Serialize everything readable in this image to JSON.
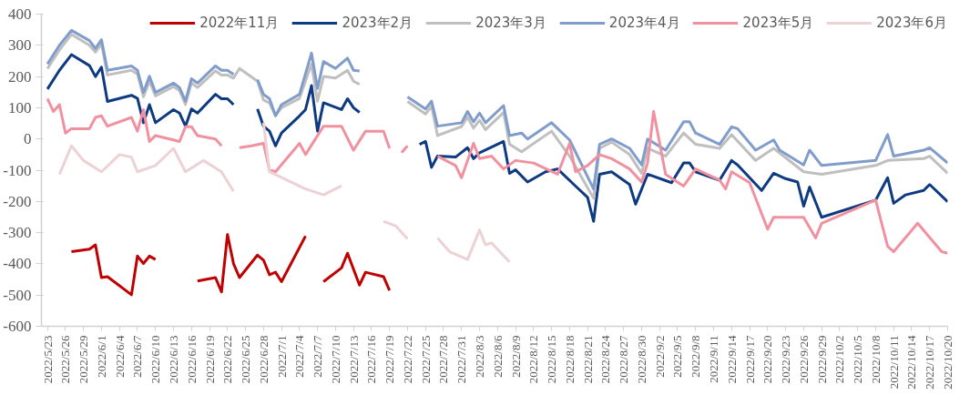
{
  "chart_data": {
    "type": "line",
    "legend": "top",
    "grid": false,
    "xlim": [
      "2022-05-22",
      "2022-10-20"
    ],
    "ylim": [
      -600,
      400
    ],
    "yticks": [
      -600,
      -500,
      -400,
      -300,
      -200,
      -100,
      0,
      100,
      200,
      300,
      400
    ],
    "xticks": [
      {
        "value": "2022-05-23",
        "label": "2022/5/23"
      },
      {
        "value": "2022-05-26",
        "label": "2022/5/26"
      },
      {
        "value": "2022-05-29",
        "label": "2022/5/29"
      },
      {
        "value": "2022-06-01",
        "label": "2022/6/1"
      },
      {
        "value": "2022-06-04",
        "label": "2022/6/4"
      },
      {
        "value": "2022-06-07",
        "label": "2022/6/7"
      },
      {
        "value": "2022-06-10",
        "label": "2022/6/10"
      },
      {
        "value": "2022-06-13",
        "label": "2022/6/13"
      },
      {
        "value": "2022-06-16",
        "label": "2022/6/16"
      },
      {
        "value": "2022-06-19",
        "label": "2022/6/19"
      },
      {
        "value": "2022-06-22",
        "label": "2022/6/22"
      },
      {
        "value": "2022-06-25",
        "label": "2022/6/25"
      },
      {
        "value": "2022-06-28",
        "label": "2022/6/28"
      },
      {
        "value": "2022-07-01",
        "label": "2022/7/1"
      },
      {
        "value": "2022-07-04",
        "label": "2022/7/4"
      },
      {
        "value": "2022-07-07",
        "label": "2022/7/7"
      },
      {
        "value": "2022-07-10",
        "label": "2022/7/10"
      },
      {
        "value": "2022-07-13",
        "label": "2022/7/13"
      },
      {
        "value": "2022-07-16",
        "label": "2022/7/16"
      },
      {
        "value": "2022-07-19",
        "label": "2022/7/19"
      },
      {
        "value": "2022-07-22",
        "label": "2022/7/22"
      },
      {
        "value": "2022-07-25",
        "label": "2022/7/25"
      },
      {
        "value": "2022-07-28",
        "label": "2022/7/28"
      },
      {
        "value": "2022-07-31",
        "label": "2022/7/31"
      },
      {
        "value": "2022-08-03",
        "label": "2022/8/3"
      },
      {
        "value": "2022-08-06",
        "label": "2022/8/6"
      },
      {
        "value": "2022-08-09",
        "label": "2022/8/9"
      },
      {
        "value": "2022-08-12",
        "label": "2022/8/12"
      },
      {
        "value": "2022-08-15",
        "label": "2022/8/15"
      },
      {
        "value": "2022-08-18",
        "label": "2022/8/18"
      },
      {
        "value": "2022-08-21",
        "label": "2022/8/21"
      },
      {
        "value": "2022-08-24",
        "label": "2022/8/24"
      },
      {
        "value": "2022-08-27",
        "label": "2022/8/27"
      },
      {
        "value": "2022-08-30",
        "label": "2022/8/30"
      },
      {
        "value": "2022-09-02",
        "label": "2022/9/2"
      },
      {
        "value": "2022-09-05",
        "label": "2022/9/5"
      },
      {
        "value": "2022-09-08",
        "label": "2022/9/8"
      },
      {
        "value": "2022-09-11",
        "label": "2022/9/11"
      },
      {
        "value": "2022-09-14",
        "label": "2022/9/14"
      },
      {
        "value": "2022-09-17",
        "label": "2022/9/17"
      },
      {
        "value": "2022-09-20",
        "label": "2022/9/20"
      },
      {
        "value": "2022-09-23",
        "label": "2022/9/23"
      },
      {
        "value": "2022-09-26",
        "label": "2022/9/26"
      },
      {
        "value": "2022-09-29",
        "label": "2022/9/29"
      },
      {
        "value": "2022-10-02",
        "label": "2022/10/2"
      },
      {
        "value": "2022-10-05",
        "label": "2022/10/5"
      },
      {
        "value": "2022-10-08",
        "label": "2022/10/8"
      },
      {
        "value": "2022-10-11",
        "label": "2022/10/11"
      },
      {
        "value": "2022-10-14",
        "label": "2022/10/14"
      },
      {
        "value": "2022-10-17",
        "label": "2022/10/17"
      },
      {
        "value": "2022-10-20",
        "label": "2022/10/20"
      }
    ],
    "series": [
      {
        "name": "2022年11月",
        "color": "#c00000",
        "x": [
          "2022-05-27",
          "2022-05-30",
          "2022-05-31",
          "2022-06-01",
          "2022-06-02",
          "2022-06-06",
          "2022-06-07",
          "2022-06-08",
          "2022-06-09",
          "2022-06-10",
          "2022-06-13",
          "2022-06-17",
          "2022-06-20",
          "2022-06-21",
          "2022-06-22",
          "2022-06-23",
          "2022-06-24",
          "2022-06-27",
          "2022-06-28",
          "2022-06-29",
          "2022-06-30",
          "2022-07-01",
          "2022-07-05",
          "2022-07-06",
          "2022-07-08",
          "2022-07-11",
          "2022-07-12",
          "2022-07-14",
          "2022-07-15",
          "2022-07-18",
          "2022-07-19"
        ],
        "values": [
          -361,
          -353,
          -339,
          -444,
          -441,
          -499,
          -375,
          -399,
          -375,
          -386,
          null,
          -455,
          -444,
          -490,
          -306,
          -399,
          -444,
          -372,
          -388,
          -435,
          -427,
          -457,
          -311,
          null,
          -457,
          -413,
          -366,
          -468,
          -427,
          -441,
          -485
        ]
      },
      {
        "name": "2023年2月",
        "color": "#0e3a82",
        "x": [
          "2022-05-23",
          "2022-05-25",
          "2022-05-27",
          "2022-05-30",
          "2022-05-31",
          "2022-06-01",
          "2022-06-02",
          "2022-06-06",
          "2022-06-07",
          "2022-06-08",
          "2022-06-09",
          "2022-06-10",
          "2022-06-13",
          "2022-06-14",
          "2022-06-15",
          "2022-06-16",
          "2022-06-17",
          "2022-06-20",
          "2022-06-21",
          "2022-06-22",
          "2022-06-23",
          "2022-06-25",
          "2022-06-27",
          "2022-06-28",
          "2022-06-29",
          "2022-06-30",
          "2022-07-01",
          "2022-07-04",
          "2022-07-05",
          "2022-07-06",
          "2022-07-07",
          "2022-07-08",
          "2022-07-11",
          "2022-07-12",
          "2022-07-13",
          "2022-07-14",
          "2022-07-18",
          "2022-07-24",
          "2022-07-25",
          "2022-07-26",
          "2022-07-27",
          "2022-07-30",
          "2022-08-01",
          "2022-08-02",
          "2022-08-03",
          "2022-08-07",
          "2022-08-08",
          "2022-08-09",
          "2022-08-11",
          "2022-08-14",
          "2022-08-16",
          "2022-08-19",
          "2022-08-21",
          "2022-08-22",
          "2022-08-23",
          "2022-08-25",
          "2022-08-28",
          "2022-08-29",
          "2022-08-31",
          "2022-09-04",
          "2022-09-06",
          "2022-09-07",
          "2022-09-08",
          "2022-09-12",
          "2022-09-14",
          "2022-09-15",
          "2022-09-19",
          "2022-09-21",
          "2022-09-23",
          "2022-09-25",
          "2022-09-26",
          "2022-09-27",
          "2022-09-29",
          "2022-10-08",
          "2022-10-10",
          "2022-10-11",
          "2022-10-13",
          "2022-10-16",
          "2022-10-17",
          "2022-10-20"
        ],
        "values": [
          160,
          220,
          270,
          235,
          200,
          230,
          120,
          140,
          130,
          52,
          110,
          52,
          94,
          83,
          41,
          96,
          83,
          143,
          129,
          129,
          110,
          null,
          96,
          41,
          25,
          -22,
          19,
          74,
          94,
          171,
          25,
          116,
          94,
          129,
          100,
          85,
          null,
          -17,
          -8,
          -91,
          -55,
          -58,
          -28,
          -63,
          -44,
          -8,
          -110,
          -99,
          -138,
          -105,
          -96,
          -151,
          -187,
          -264,
          -113,
          -105,
          -146,
          -209,
          -113,
          -140,
          -77,
          -77,
          -105,
          -132,
          -69,
          -83,
          -165,
          -110,
          -127,
          -138,
          -215,
          -154,
          -251,
          -196,
          -124,
          -206,
          -179,
          -165,
          -146,
          -201
        ]
      },
      {
        "name": "2023年3月",
        "color": "#bfbfbf",
        "x": [
          "2022-05-23",
          "2022-05-25",
          "2022-05-27",
          "2022-05-30",
          "2022-05-31",
          "2022-06-01",
          "2022-06-02",
          "2022-06-06",
          "2022-06-07",
          "2022-06-08",
          "2022-06-09",
          "2022-06-10",
          "2022-06-13",
          "2022-06-14",
          "2022-06-15",
          "2022-06-16",
          "2022-06-17",
          "2022-06-20",
          "2022-06-21",
          "2022-06-22",
          "2022-06-23",
          "2022-06-24",
          "2022-06-27",
          "2022-06-28",
          "2022-06-29",
          "2022-06-30",
          "2022-07-01",
          "2022-07-04",
          "2022-07-06",
          "2022-07-07",
          "2022-07-08",
          "2022-07-10",
          "2022-07-12",
          "2022-07-13",
          "2022-07-14",
          "2022-07-18",
          "2022-07-22",
          "2022-07-25",
          "2022-07-26",
          "2022-07-27",
          "2022-07-31",
          "2022-08-01",
          "2022-08-02",
          "2022-08-03",
          "2022-08-04",
          "2022-08-07",
          "2022-08-08",
          "2022-08-10",
          "2022-08-15",
          "2022-08-18",
          "2022-08-22",
          "2022-08-23",
          "2022-08-25",
          "2022-08-28",
          "2022-08-30",
          "2022-08-31",
          "2022-09-03",
          "2022-09-06",
          "2022-09-08",
          "2022-09-12",
          "2022-09-14",
          "2022-09-18",
          "2022-09-21",
          "2022-09-26",
          "2022-09-29",
          "2022-10-08",
          "2022-10-10",
          "2022-10-16",
          "2022-10-17",
          "2022-10-20"
        ],
        "values": [
          225,
          285,
          335,
          300,
          278,
          305,
          205,
          220,
          208,
          135,
          185,
          138,
          168,
          155,
          110,
          180,
          165,
          218,
          205,
          205,
          195,
          226,
          185,
          125,
          115,
          75,
          100,
          130,
          240,
          121,
          200,
          195,
          220,
          185,
          175,
          null,
          120,
          80,
          105,
          11,
          40,
          70,
          35,
          60,
          30,
          85,
          -17,
          -41,
          25,
          -55,
          -190,
          -30,
          -10,
          -50,
          -110,
          -30,
          -55,
          19,
          -17,
          -30,
          14,
          -69,
          -30,
          -105,
          -113,
          -85,
          -69,
          -63,
          -55,
          -110
        ]
      },
      {
        "name": "2023年4月",
        "color": "#7f9ccb",
        "x": [
          "2022-05-23",
          "2022-05-25",
          "2022-05-27",
          "2022-05-30",
          "2022-05-31",
          "2022-06-01",
          "2022-06-02",
          "2022-06-06",
          "2022-06-07",
          "2022-06-08",
          "2022-06-09",
          "2022-06-10",
          "2022-06-13",
          "2022-06-14",
          "2022-06-15",
          "2022-06-16",
          "2022-06-17",
          "2022-06-20",
          "2022-06-21",
          "2022-06-22",
          "2022-06-23",
          "2022-06-25",
          "2022-06-27",
          "2022-06-28",
          "2022-06-29",
          "2022-06-30",
          "2022-07-01",
          "2022-07-04",
          "2022-07-06",
          "2022-07-07",
          "2022-07-08",
          "2022-07-10",
          "2022-07-12",
          "2022-07-13",
          "2022-07-14",
          "2022-07-18",
          "2022-07-22",
          "2022-07-25",
          "2022-07-26",
          "2022-07-27",
          "2022-07-31",
          "2022-08-01",
          "2022-08-02",
          "2022-08-03",
          "2022-08-04",
          "2022-08-07",
          "2022-08-08",
          "2022-08-10",
          "2022-08-11",
          "2022-08-15",
          "2022-08-18",
          "2022-08-22",
          "2022-08-23",
          "2022-08-25",
          "2022-08-28",
          "2022-08-30",
          "2022-08-31",
          "2022-09-03",
          "2022-09-06",
          "2022-09-07",
          "2022-09-08",
          "2022-09-12",
          "2022-09-14",
          "2022-09-15",
          "2022-09-18",
          "2022-09-21",
          "2022-09-22",
          "2022-09-26",
          "2022-09-27",
          "2022-09-29",
          "2022-10-08",
          "2022-10-10",
          "2022-10-11",
          "2022-10-16",
          "2022-10-17",
          "2022-10-20"
        ],
        "values": [
          240,
          300,
          348,
          315,
          290,
          318,
          220,
          234,
          220,
          149,
          201,
          149,
          179,
          165,
          121,
          193,
          179,
          234,
          220,
          220,
          207,
          null,
          190,
          143,
          129,
          74,
          110,
          143,
          275,
          162,
          248,
          226,
          259,
          220,
          218,
          null,
          135,
          96,
          121,
          41,
          52,
          88,
          55,
          83,
          52,
          107,
          11,
          19,
          0,
          52,
          -3,
          -160,
          -17,
          0,
          -30,
          -83,
          0,
          -36,
          55,
          55,
          19,
          -17,
          39,
          33,
          -36,
          -3,
          -36,
          -83,
          -36,
          -85,
          -69,
          14,
          -55,
          -36,
          -28,
          -77
        ]
      },
      {
        "name": "2023年5月",
        "color": "#f1919f",
        "x": [
          "2022-05-23",
          "2022-05-24",
          "2022-05-25",
          "2022-05-26",
          "2022-05-27",
          "2022-05-30",
          "2022-05-31",
          "2022-06-01",
          "2022-06-02",
          "2022-06-06",
          "2022-06-07",
          "2022-06-08",
          "2022-06-09",
          "2022-06-10",
          "2022-06-13",
          "2022-06-14",
          "2022-06-15",
          "2022-06-16",
          "2022-06-17",
          "2022-06-20",
          "2022-06-21",
          "2022-06-22",
          "2022-06-24",
          "2022-06-26",
          "2022-06-28",
          "2022-06-29",
          "2022-06-30",
          "2022-07-04",
          "2022-07-05",
          "2022-07-08",
          "2022-07-11",
          "2022-07-13",
          "2022-07-15",
          "2022-07-18",
          "2022-07-19",
          "2022-07-20",
          "2022-07-21",
          "2022-07-22",
          "2022-07-24",
          "2022-07-27",
          "2022-07-30",
          "2022-07-31",
          "2022-08-02",
          "2022-08-03",
          "2022-08-05",
          "2022-08-07",
          "2022-08-09",
          "2022-08-12",
          "2022-08-16",
          "2022-08-18",
          "2022-08-19",
          "2022-08-21",
          "2022-08-23",
          "2022-08-25",
          "2022-08-28",
          "2022-08-30",
          "2022-08-31",
          "2022-09-01",
          "2022-09-03",
          "2022-09-06",
          "2022-09-08",
          "2022-09-12",
          "2022-09-13",
          "2022-09-14",
          "2022-09-17",
          "2022-09-20",
          "2022-09-21",
          "2022-09-26",
          "2022-09-28",
          "2022-09-29",
          "2022-10-08",
          "2022-10-10",
          "2022-10-11",
          "2022-10-15",
          "2022-10-19",
          "2022-10-20"
        ],
        "values": [
          129,
          88,
          110,
          19,
          33,
          33,
          69,
          74,
          41,
          69,
          25,
          94,
          -8,
          11,
          -3,
          -8,
          39,
          39,
          11,
          0,
          -22,
          null,
          -28,
          -22,
          -14,
          -99,
          -105,
          -14,
          -50,
          41,
          41,
          -36,
          25,
          25,
          -30,
          null,
          -44,
          -22,
          null,
          -55,
          -85,
          -124,
          -14,
          -63,
          -55,
          -96,
          -69,
          -77,
          -113,
          -14,
          -105,
          -85,
          -50,
          -63,
          -96,
          -138,
          -77,
          88,
          -113,
          -151,
          -96,
          -132,
          -160,
          -105,
          -140,
          -289,
          -251,
          -251,
          -317,
          -270,
          -196,
          -344,
          -361,
          -270,
          -361,
          -366
        ]
      },
      {
        "name": "2023年6月",
        "color": "#ecd1d5",
        "x": [
          "2022-05-25",
          "2022-05-27",
          "2022-05-29",
          "2022-06-01",
          "2022-06-04",
          "2022-06-06",
          "2022-06-07",
          "2022-06-10",
          "2022-06-13",
          "2022-06-15",
          "2022-06-18",
          "2022-06-21",
          "2022-06-23",
          "2022-06-26",
          "2022-06-28",
          "2022-06-29",
          "2022-07-05",
          "2022-07-08",
          "2022-07-11",
          "2022-07-14",
          "2022-07-18",
          "2022-07-20",
          "2022-07-22",
          "2022-07-25",
          "2022-07-27",
          "2022-07-29",
          "2022-08-01",
          "2022-08-03",
          "2022-08-04",
          "2022-08-05",
          "2022-08-08"
        ],
        "values": [
          -113,
          -22,
          -69,
          -105,
          -50,
          -58,
          -105,
          -85,
          -30,
          -105,
          -69,
          -105,
          -168,
          null,
          52,
          -105,
          -160,
          -179,
          -150,
          null,
          -264,
          -278,
          -320,
          null,
          -317,
          -361,
          -386,
          -292,
          -339,
          -333,
          -394
        ]
      }
    ]
  }
}
